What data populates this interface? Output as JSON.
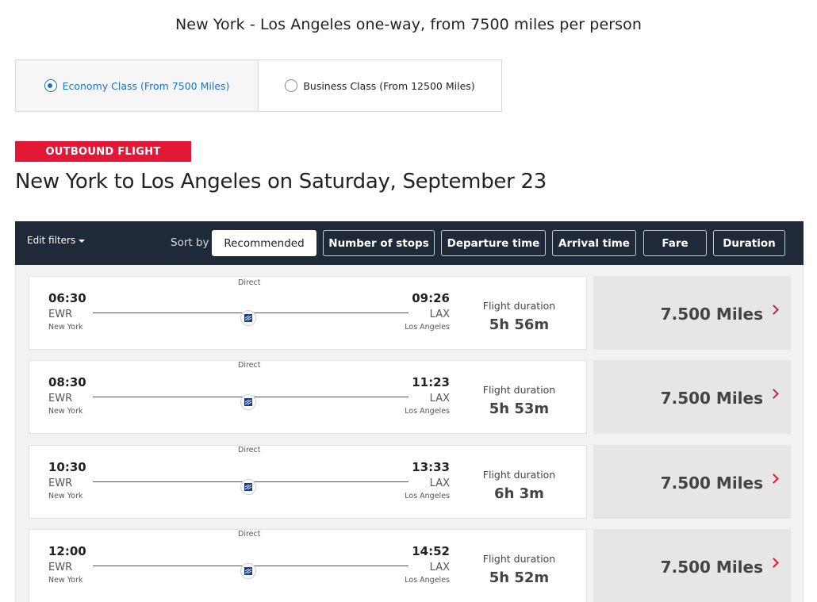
{
  "headline": "New York - Los Angeles one-way, from 7500 miles per person",
  "cabin_options": [
    {
      "label": "Economy Class (From 7500 Miles)",
      "selected": true
    },
    {
      "label": "Business Class (From 12500 Miles)",
      "selected": false
    }
  ],
  "badge": "OUTBOUND FLIGHT",
  "route_title": "New York to Los Angeles on Saturday, September 23",
  "toolbar": {
    "edit_filters": "Edit filters",
    "sort_by": "Sort by",
    "sort_options": [
      "Recommended",
      "Number of stops",
      "Departure time",
      "Arrival time",
      "Fare",
      "Duration"
    ],
    "active_sort": "Recommended"
  },
  "colors": {
    "accent_red": "#e31837",
    "toolbar_bg": "#1f2a38",
    "link_blue": "#1d6fc9"
  },
  "flights": [
    {
      "stops": "Direct",
      "dep_time": "06:30",
      "dep_code": "EWR",
      "dep_city": "New York",
      "arr_time": "09:26",
      "arr_code": "LAX",
      "arr_city": "Los Angeles",
      "duration_label": "Flight duration",
      "duration": "5h 56m",
      "fare": "7.500 Miles"
    },
    {
      "stops": "Direct",
      "dep_time": "08:30",
      "dep_code": "EWR",
      "dep_city": "New York",
      "arr_time": "11:23",
      "arr_code": "LAX",
      "arr_city": "Los Angeles",
      "duration_label": "Flight duration",
      "duration": "5h 53m",
      "fare": "7.500 Miles"
    },
    {
      "stops": "Direct",
      "dep_time": "10:30",
      "dep_code": "EWR",
      "dep_city": "New York",
      "arr_time": "13:33",
      "arr_code": "LAX",
      "arr_city": "Los Angeles",
      "duration_label": "Flight duration",
      "duration": "6h 3m",
      "fare": "7.500 Miles"
    },
    {
      "stops": "Direct",
      "dep_time": "12:00",
      "dep_code": "EWR",
      "dep_city": "New York",
      "arr_time": "14:52",
      "arr_code": "LAX",
      "arr_city": "Los Angeles",
      "duration_label": "Flight duration",
      "duration": "5h 52m",
      "fare": "7.500 Miles"
    }
  ]
}
